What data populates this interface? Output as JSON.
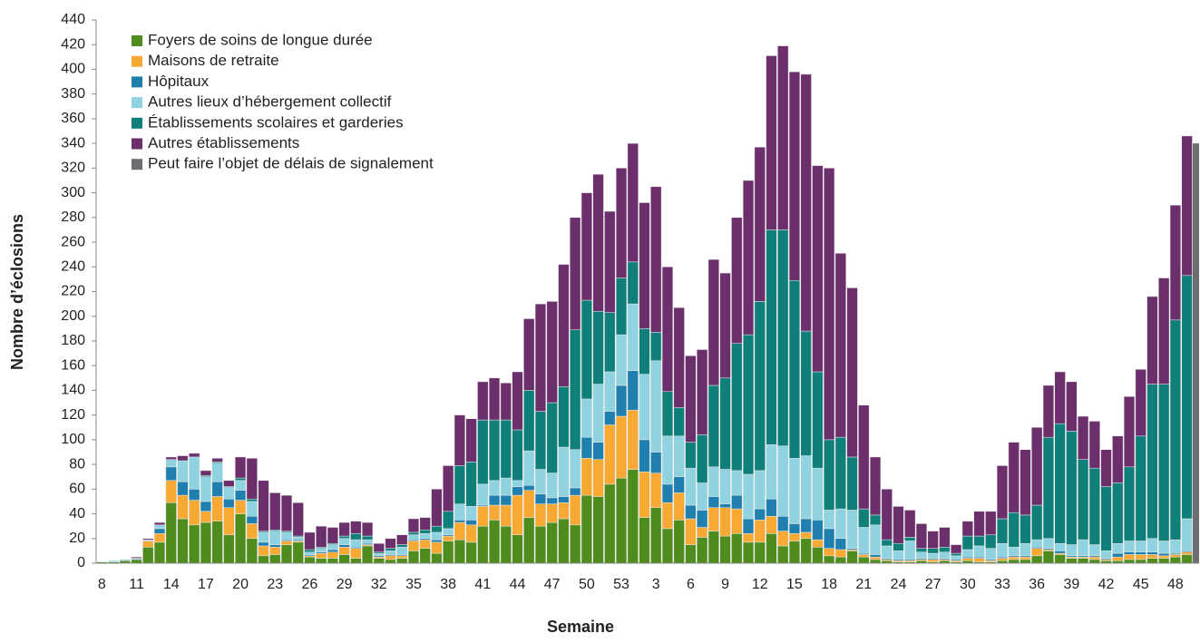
{
  "chart_data": {
    "type": "stacked_bar",
    "y_label": "Nombre d’éclosions",
    "x_label": "Semaine",
    "categories": [
      "8",
      null,
      null,
      "11",
      null,
      null,
      "14",
      null,
      null,
      "17",
      null,
      null,
      "20",
      null,
      null,
      "23",
      null,
      null,
      "26",
      null,
      null,
      "29",
      null,
      null,
      "32",
      null,
      null,
      "35",
      null,
      null,
      "38",
      null,
      null,
      "41",
      null,
      null,
      "44",
      null,
      null,
      "47",
      null,
      null,
      "50",
      null,
      null,
      "53",
      null,
      null,
      "3",
      null,
      null,
      "6",
      null,
      null,
      "9",
      null,
      null,
      "12",
      null,
      null,
      "15",
      null,
      null,
      "18",
      null,
      null,
      "21",
      null,
      null,
      "24",
      null,
      null,
      "27",
      null,
      null,
      "30",
      null,
      null,
      "33",
      null,
      null,
      "36",
      null,
      null,
      "39",
      null,
      null,
      "42",
      null,
      null,
      "45",
      null,
      null,
      "48",
      null
    ],
    "series": [
      {
        "name": "Foyers de soins de longue durée",
        "color": "#4e8c1e",
        "values": [
          1,
          1,
          2,
          3,
          13,
          17,
          49,
          36,
          31,
          33,
          34,
          23,
          40,
          20,
          6,
          7,
          15,
          17,
          5,
          4,
          4,
          7,
          4,
          14,
          4,
          3,
          4,
          10,
          12,
          8,
          18,
          19,
          17,
          30,
          35,
          30,
          23,
          37,
          30,
          33,
          36,
          31,
          55,
          54,
          64,
          69,
          76,
          37,
          45,
          28,
          35,
          15,
          21,
          26,
          22,
          24,
          17,
          17,
          24,
          14,
          18,
          20,
          13,
          6,
          5,
          10,
          5,
          3,
          2,
          1,
          1,
          2,
          1,
          2,
          1,
          2,
          1,
          1,
          2,
          3,
          3,
          6,
          10,
          7,
          4,
          4,
          3,
          2,
          2,
          3,
          3,
          4,
          4,
          5,
          7
        ]
      },
      {
        "name": "Maisons de retraite",
        "color": "#f7a934",
        "values": [
          0,
          0,
          0,
          0,
          5,
          7,
          18,
          19,
          20,
          9,
          20,
          22,
          11,
          12,
          8,
          6,
          3,
          1,
          1,
          4,
          5,
          6,
          8,
          1,
          1,
          3,
          2,
          8,
          7,
          9,
          4,
          14,
          14,
          16,
          12,
          17,
          32,
          22,
          18,
          15,
          13,
          24,
          30,
          30,
          48,
          50,
          48,
          37,
          28,
          21,
          22,
          21,
          8,
          19,
          23,
          20,
          7,
          18,
          14,
          12,
          6,
          5,
          6,
          6,
          6,
          1,
          2,
          2,
          1,
          1,
          1,
          1,
          2,
          1,
          1,
          2,
          3,
          1,
          2,
          2,
          2,
          6,
          1,
          1,
          1,
          1,
          2,
          1,
          3,
          4,
          4,
          3,
          2,
          2,
          2
        ]
      },
      {
        "name": "Hôpitaux",
        "color": "#1f7fae",
        "values": [
          0,
          0,
          0,
          0,
          0,
          4,
          11,
          11,
          9,
          8,
          12,
          7,
          8,
          6,
          3,
          2,
          1,
          1,
          1,
          1,
          2,
          2,
          1,
          1,
          1,
          1,
          1,
          1,
          1,
          2,
          1,
          2,
          4,
          1,
          8,
          8,
          7,
          4,
          8,
          5,
          5,
          6,
          17,
          14,
          11,
          25,
          32,
          26,
          17,
          15,
          13,
          11,
          14,
          9,
          3,
          11,
          12,
          9,
          14,
          12,
          8,
          11,
          16,
          16,
          9,
          1,
          1,
          2,
          1,
          1,
          1,
          1,
          1,
          1,
          1,
          1,
          1,
          1,
          1,
          1,
          1,
          1,
          1,
          2,
          1,
          1,
          1,
          1,
          3,
          2,
          2,
          2,
          2,
          1,
          1
        ]
      },
      {
        "name": "Autres lieux d’hébergement collectif",
        "color": "#8fd3e0",
        "values": [
          0,
          1,
          1,
          1,
          1,
          3,
          6,
          17,
          26,
          20,
          15,
          10,
          8,
          12,
          8,
          11,
          6,
          2,
          2,
          3,
          4,
          5,
          6,
          3,
          2,
          3,
          6,
          4,
          4,
          6,
          5,
          13,
          11,
          17,
          12,
          14,
          5,
          28,
          20,
          20,
          40,
          31,
          31,
          47,
          32,
          41,
          54,
          53,
          74,
          39,
          33,
          30,
          22,
          24,
          28,
          20,
          36,
          31,
          44,
          57,
          53,
          51,
          42,
          15,
          24,
          31,
          21,
          24,
          10,
          7,
          15,
          5,
          4,
          5,
          3,
          6,
          9,
          9,
          11,
          7,
          10,
          6,
          8,
          6,
          9,
          13,
          9,
          6,
          8,
          9,
          9,
          11,
          10,
          11,
          26
        ]
      },
      {
        "name": "Établissements scolaires et garderies",
        "color": "#0f7f7a",
        "values": [
          0,
          0,
          0,
          0,
          0,
          0,
          0,
          0,
          0,
          1,
          1,
          0,
          2,
          2,
          1,
          1,
          1,
          1,
          2,
          1,
          1,
          2,
          5,
          3,
          1,
          2,
          2,
          2,
          3,
          5,
          14,
          31,
          36,
          52,
          49,
          47,
          41,
          49,
          47,
          57,
          49,
          97,
          80,
          59,
          48,
          46,
          34,
          37,
          23,
          36,
          23,
          21,
          39,
          66,
          74,
          103,
          113,
          137,
          174,
          175,
          144,
          101,
          78,
          57,
          58,
          43,
          15,
          8,
          5,
          6,
          3,
          3,
          4,
          4,
          2,
          11,
          8,
          11,
          20,
          28,
          23,
          28,
          82,
          97,
          92,
          65,
          62,
          52,
          49,
          60,
          85,
          125,
          127,
          178,
          197
        ]
      },
      {
        "name": "Autres établissements",
        "color": "#6b2f6b",
        "values": [
          0,
          0,
          0,
          1,
          1,
          2,
          2,
          4,
          3,
          4,
          3,
          5,
          17,
          33,
          41,
          30,
          29,
          27,
          14,
          17,
          13,
          11,
          10,
          11,
          7,
          8,
          8,
          11,
          10,
          30,
          37,
          41,
          35,
          31,
          34,
          30,
          47,
          58,
          87,
          82,
          99,
          91,
          87,
          111,
          82,
          89,
          96,
          102,
          118,
          101,
          81,
          70,
          69,
          102,
          85,
          102,
          125,
          125,
          141,
          149,
          169,
          208,
          167,
          220,
          149,
          137,
          84,
          47,
          41,
          30,
          22,
          20,
          14,
          16,
          7,
          12,
          20,
          19,
          43,
          57,
          53,
          63,
          42,
          42,
          40,
          35,
          38,
          30,
          38,
          57,
          54,
          71,
          86,
          93,
          113
        ]
      }
    ],
    "reporting_delay": {
      "label": "Peut faire l’objet de délais de signalement",
      "color": "#6d6e71",
      "value": 340
    },
    "ylim": [
      0,
      440
    ],
    "yticks": [
      0,
      20,
      40,
      60,
      80,
      100,
      120,
      140,
      160,
      180,
      200,
      220,
      240,
      260,
      280,
      300,
      320,
      340,
      360,
      380,
      400,
      420,
      440
    ],
    "grid": false,
    "legend": "upper-left"
  }
}
